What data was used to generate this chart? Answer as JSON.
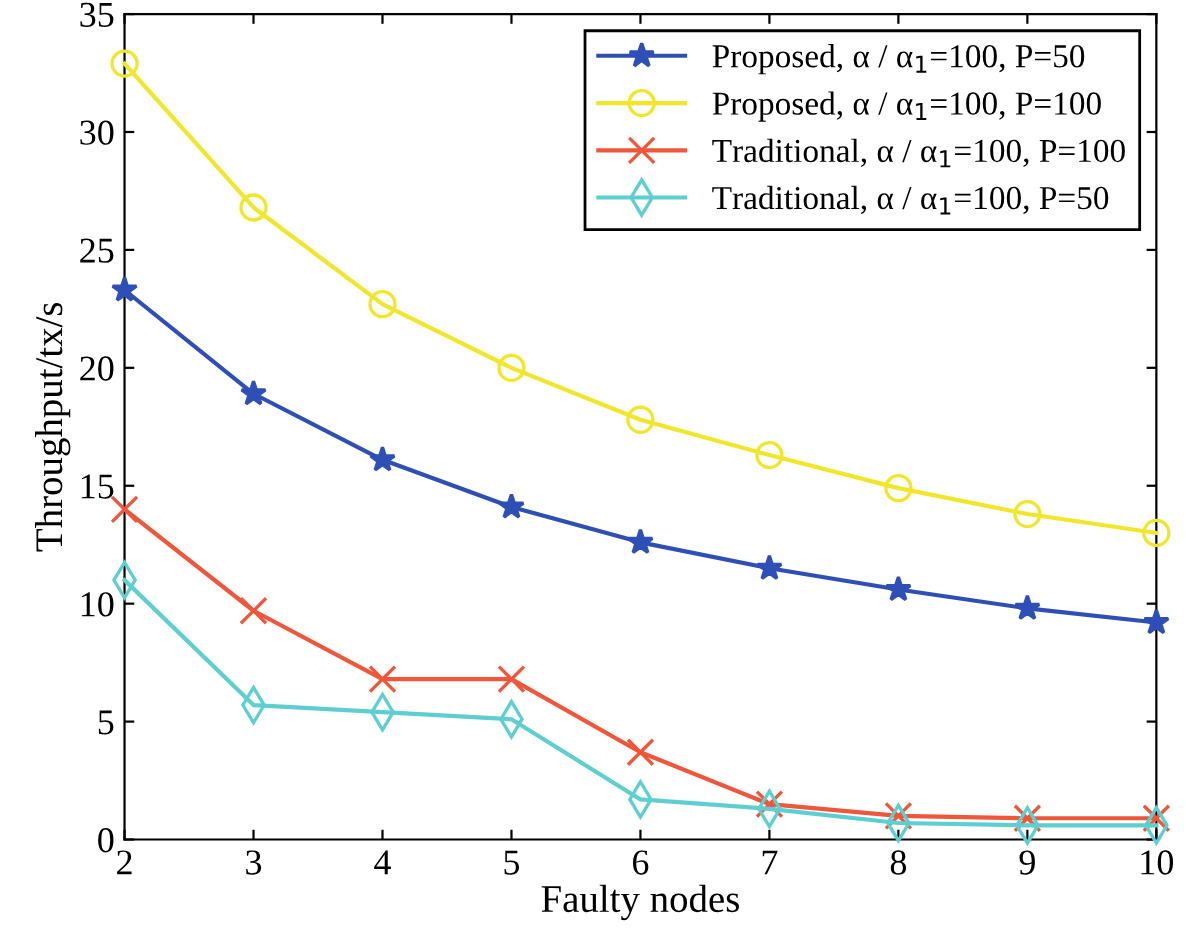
{
  "chart_data": {
    "type": "line",
    "xlabel": "Faulty nodes",
    "ylabel": "Throughput/tx/s",
    "x": [
      2,
      3,
      4,
      5,
      6,
      7,
      8,
      9,
      10
    ],
    "series": [
      {
        "name": "Proposed, α / α$_{1}$=100, P=50",
        "color": "#2e4fb5",
        "marker": "star",
        "values": [
          23.3,
          18.9,
          16.1,
          14.1,
          12.6,
          11.5,
          10.6,
          9.8,
          9.2
        ]
      },
      {
        "name": "Proposed, α / α$_{1}$=100, P=100",
        "color": "#f2e62a",
        "marker": "circle",
        "values": [
          32.9,
          26.8,
          22.7,
          20.0,
          17.8,
          16.3,
          14.9,
          13.8,
          13.0
        ]
      },
      {
        "name": "Traditional, α / α$_{1}$=100, P=100",
        "color": "#f0563a",
        "marker": "cross",
        "values": [
          14.0,
          9.7,
          6.8,
          6.8,
          3.7,
          1.5,
          1.0,
          0.9,
          0.9
        ]
      },
      {
        "name": "Traditional, α / α$_{1}$=100, P=50",
        "color": "#5ecfd0",
        "marker": "diamond",
        "values": [
          11.0,
          5.7,
          5.4,
          5.1,
          1.7,
          1.3,
          0.7,
          0.6,
          0.6
        ]
      }
    ],
    "xlim": [
      2,
      10
    ],
    "xticks": [
      2,
      3,
      4,
      5,
      6,
      7,
      8,
      9,
      10
    ],
    "ylim": [
      0,
      35
    ],
    "yticks": [
      0,
      5,
      10,
      15,
      20,
      25,
      30,
      35
    ],
    "grid": false,
    "legend": "top right",
    "line_style": "solid"
  }
}
